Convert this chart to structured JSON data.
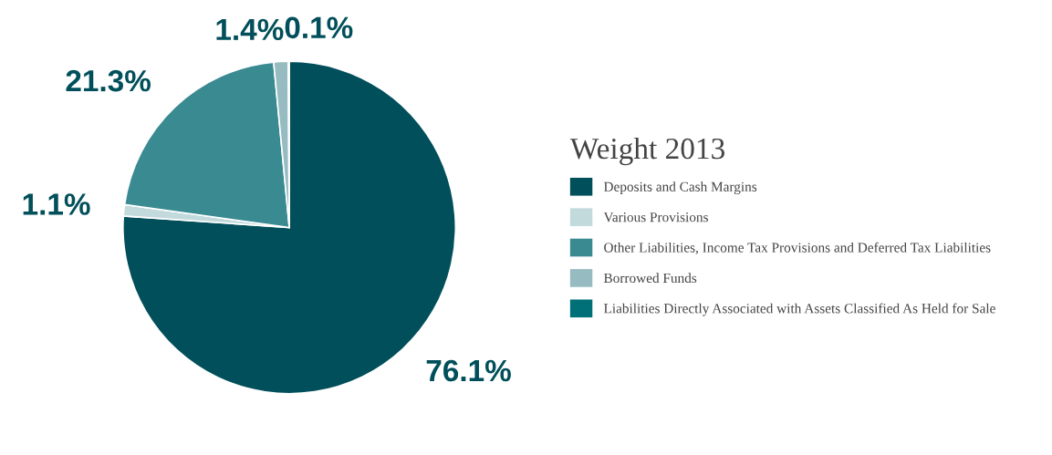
{
  "chart_data": {
    "type": "pie",
    "legend_title": "Weight 2013",
    "categories": [
      "Deposits and Cash Margins",
      "Various Provisions",
      "Other Liabilities, Income Tax Provisions and Deferred Tax Liabilities",
      "Borrowed Funds",
      "Liabilities Directly Associated with Assets Classified As Held for Sale"
    ],
    "values": [
      76.1,
      1.1,
      21.3,
      1.4,
      0.1
    ],
    "value_labels": [
      "76.1%",
      "1.1%",
      "21.3%",
      "1.4%",
      "0.1%"
    ],
    "colors": [
      "#004f5a",
      "#c3dadd",
      "#3a8a92",
      "#96bcc2",
      "#007078"
    ],
    "legend": "right"
  }
}
